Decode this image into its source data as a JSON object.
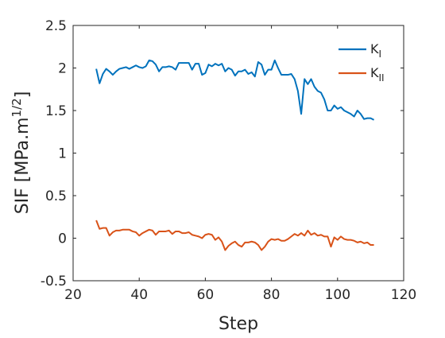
{
  "chart_data": {
    "type": "line",
    "xlabel": "Step",
    "ylabel": "SIF [MPa.m",
    "ylabel_exponent": "1/2",
    "ylabel_suffix": "]",
    "xlim": [
      20,
      120
    ],
    "ylim": [
      -0.5,
      2.5
    ],
    "xticks": [
      "20",
      "40",
      "60",
      "80",
      "100",
      "120"
    ],
    "yticks": [
      "-0.5",
      "0",
      "0.5",
      "1",
      "1.5",
      "2",
      "2.5"
    ],
    "grid": false,
    "legend_position": "top-right",
    "series": [
      {
        "name": "K",
        "name_subscript": "I",
        "color": "#0072BD",
        "x": [
          27,
          28,
          29,
          30,
          31,
          32,
          33,
          34,
          35,
          36,
          37,
          38,
          39,
          40,
          41,
          42,
          43,
          44,
          45,
          46,
          47,
          48,
          49,
          50,
          51,
          52,
          53,
          54,
          55,
          56,
          57,
          58,
          59,
          60,
          61,
          62,
          63,
          64,
          65,
          66,
          67,
          68,
          69,
          70,
          71,
          72,
          73,
          74,
          75,
          76,
          77,
          78,
          79,
          80,
          81,
          82,
          83,
          84,
          85,
          86,
          87,
          88,
          89,
          90,
          91,
          92,
          93,
          94,
          95,
          96,
          97,
          98,
          99,
          100,
          101,
          102,
          103,
          104,
          105,
          106,
          107,
          108,
          109,
          110,
          111
        ],
        "y": [
          1.99,
          1.82,
          1.93,
          1.99,
          1.96,
          1.92,
          1.96,
          1.99,
          2.0,
          2.01,
          1.99,
          2.01,
          2.03,
          2.01,
          2.0,
          2.02,
          2.09,
          2.08,
          2.04,
          1.96,
          2.01,
          2.01,
          2.02,
          2.01,
          1.98,
          2.06,
          2.06,
          2.06,
          2.06,
          1.98,
          2.05,
          2.05,
          1.92,
          1.94,
          2.04,
          2.02,
          2.05,
          2.03,
          2.05,
          1.96,
          2.0,
          1.98,
          1.91,
          1.96,
          1.96,
          1.98,
          1.93,
          1.95,
          1.9,
          2.07,
          2.04,
          1.92,
          1.98,
          1.98,
          2.09,
          2.0,
          1.92,
          1.92,
          1.92,
          1.93,
          1.87,
          1.73,
          1.46,
          1.87,
          1.81,
          1.87,
          1.78,
          1.73,
          1.71,
          1.63,
          1.5,
          1.5,
          1.56,
          1.52,
          1.54,
          1.5,
          1.48,
          1.46,
          1.43,
          1.5,
          1.46,
          1.4,
          1.41,
          1.41,
          1.39
        ]
      },
      {
        "name": "K",
        "name_subscript": "II",
        "color": "#D95319",
        "x": [
          27,
          28,
          29,
          30,
          31,
          32,
          33,
          34,
          35,
          36,
          37,
          38,
          39,
          40,
          41,
          42,
          43,
          44,
          45,
          46,
          47,
          48,
          49,
          50,
          51,
          52,
          53,
          54,
          55,
          56,
          57,
          58,
          59,
          60,
          61,
          62,
          63,
          64,
          65,
          66,
          67,
          68,
          69,
          70,
          71,
          72,
          73,
          74,
          75,
          76,
          77,
          78,
          79,
          80,
          81,
          82,
          83,
          84,
          85,
          86,
          87,
          88,
          89,
          90,
          91,
          92,
          93,
          94,
          95,
          96,
          97,
          98,
          99,
          100,
          101,
          102,
          103,
          104,
          105,
          106,
          107,
          108,
          109,
          110,
          111
        ],
        "y": [
          0.21,
          0.11,
          0.12,
          0.12,
          0.03,
          0.07,
          0.09,
          0.09,
          0.1,
          0.1,
          0.1,
          0.08,
          0.07,
          0.03,
          0.06,
          0.08,
          0.1,
          0.09,
          0.04,
          0.08,
          0.08,
          0.08,
          0.09,
          0.05,
          0.08,
          0.08,
          0.06,
          0.06,
          0.07,
          0.04,
          0.03,
          0.02,
          0.0,
          0.04,
          0.05,
          0.04,
          -0.02,
          0.01,
          -0.04,
          -0.14,
          -0.09,
          -0.06,
          -0.04,
          -0.08,
          -0.1,
          -0.05,
          -0.05,
          -0.04,
          -0.05,
          -0.08,
          -0.14,
          -0.1,
          -0.04,
          -0.01,
          -0.02,
          -0.01,
          -0.03,
          -0.03,
          -0.01,
          0.02,
          0.05,
          0.03,
          0.06,
          0.03,
          0.09,
          0.04,
          0.06,
          0.03,
          0.04,
          0.02,
          0.02,
          -0.1,
          0.01,
          -0.02,
          0.02,
          -0.01,
          -0.02,
          -0.02,
          -0.03,
          -0.05,
          -0.04,
          -0.06,
          -0.05,
          -0.08,
          -0.08
        ]
      }
    ]
  }
}
